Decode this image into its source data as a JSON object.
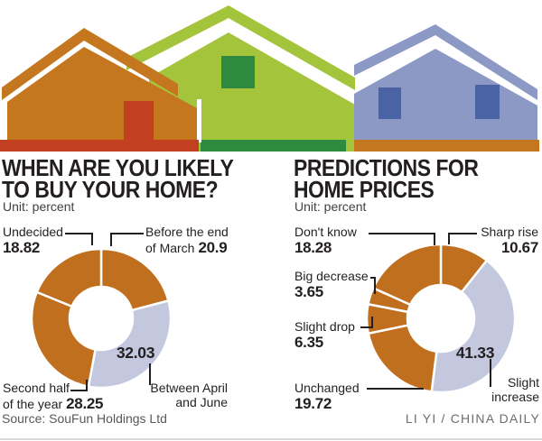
{
  "palette": {
    "house_orange": "#c4771f",
    "house_red": "#c23f1f",
    "house_green": "#a4c43c",
    "house_dark_green": "#2e8a3f",
    "house_blue": "#8d99c5",
    "house_dark_blue": "#4a63a5",
    "donut_orange": "#c06f1e",
    "donut_blue": "#c3c8de",
    "ink": "#231f20"
  },
  "panels": [
    {
      "title_line1": "WHEN ARE YOU LIKELY",
      "title_line2": "TO BUY YOUR HOME?",
      "unit": "Unit: percent",
      "callouts": {
        "undecided": {
          "label": "Undecided",
          "value": "18.82"
        },
        "march": {
          "label": "Before the end",
          "label2": "of March",
          "value": "20.9"
        },
        "april": {
          "inner_value": "32.03",
          "label": "Between April",
          "label2": "and June"
        },
        "second_half": {
          "label": "Second half",
          "label2": "of the year",
          "value": "28.25"
        }
      }
    },
    {
      "title_line1": "PREDICTIONS FOR",
      "title_line2": "HOME PRICES",
      "unit": "Unit: percent",
      "callouts": {
        "dont_know": {
          "label": "Don't know",
          "value": "18.28"
        },
        "sharp_rise": {
          "label": "Sharp rise",
          "value": "10.67"
        },
        "big_decrease": {
          "label": "Big decrease",
          "value": "3.65"
        },
        "slight_drop": {
          "label": "Slight drop",
          "value": "6.35"
        },
        "unchanged": {
          "label": "Unchanged",
          "value": "19.72"
        },
        "slight_increase": {
          "inner_value": "41.33",
          "label": "Slight",
          "label2": "increase"
        }
      }
    }
  ],
  "chart_data": [
    {
      "type": "pie",
      "style": "donut",
      "title": "WHEN ARE YOU LIKELY TO BUY YOUR HOME?",
      "unit": "percent",
      "start": "top",
      "direction": "clockwise",
      "segments": [
        {
          "label": "Before the end of March",
          "value": 20.9,
          "color": "orange"
        },
        {
          "label": "Between April and June",
          "value": 32.03,
          "color": "lavender"
        },
        {
          "label": "Second half of the year",
          "value": 28.25,
          "color": "orange"
        },
        {
          "label": "Undecided",
          "value": 18.82,
          "color": "orange"
        }
      ]
    },
    {
      "type": "pie",
      "style": "donut",
      "title": "PREDICTIONS FOR HOME PRICES",
      "unit": "percent",
      "start": "top",
      "direction": "clockwise",
      "segments": [
        {
          "label": "Sharp rise",
          "value": 10.67,
          "color": "orange"
        },
        {
          "label": "Slight increase",
          "value": 41.33,
          "color": "lavender"
        },
        {
          "label": "Unchanged",
          "value": 19.72,
          "color": "orange"
        },
        {
          "label": "Slight drop",
          "value": 6.35,
          "color": "orange"
        },
        {
          "label": "Big decrease",
          "value": 3.65,
          "color": "orange"
        },
        {
          "label": "Don't know",
          "value": 18.28,
          "color": "orange"
        }
      ]
    }
  ],
  "footer": {
    "source": "Source: SouFun Holdings Ltd",
    "credit": "LI YI / CHINA DAILY"
  }
}
